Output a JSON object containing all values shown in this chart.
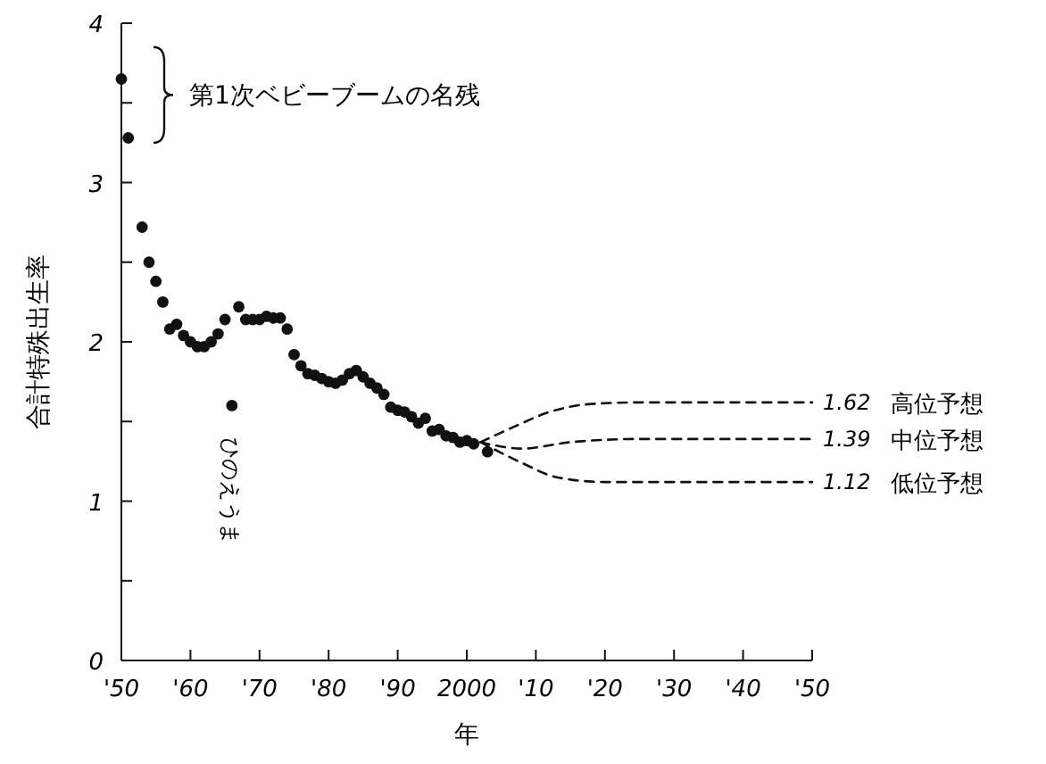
{
  "chart_data": {
    "type": "scatter",
    "xlabel": "年",
    "ylabel": "合計特殊出生率",
    "xlim": [
      1950,
      2050
    ],
    "ylim": [
      0,
      4
    ],
    "xticks": [
      {
        "value": 1950,
        "label": "'50"
      },
      {
        "value": 1960,
        "label": "'60"
      },
      {
        "value": 1970,
        "label": "'70"
      },
      {
        "value": 1980,
        "label": "'80"
      },
      {
        "value": 1990,
        "label": "'90"
      },
      2000,
      {
        "value": 2010,
        "label": "'10"
      },
      {
        "value": 2020,
        "label": "'20"
      },
      {
        "value": 2030,
        "label": "'30"
      },
      {
        "value": 2040,
        "label": "'40"
      },
      {
        "value": 2050,
        "label": "'50"
      }
    ],
    "yticks": [
      0,
      {
        "value": 0.5,
        "label": null
      },
      1,
      {
        "value": 1.5,
        "label": null
      },
      2,
      {
        "value": 2.5,
        "label": null
      },
      3,
      {
        "value": 3.5,
        "label": null
      },
      4
    ],
    "grid": false,
    "series": [
      {
        "color": "#111111",
        "marker": "circle",
        "x": [
          1950,
          1951,
          1953,
          1954,
          1955,
          1956,
          1957,
          1958,
          1959,
          1960,
          1961,
          1962,
          1963,
          1964,
          1965,
          1966,
          1967,
          1968,
          1969,
          1970,
          1971,
          1972,
          1973,
          1974,
          1975,
          1976,
          1977,
          1978,
          1979,
          1980,
          1981,
          1982,
          1983,
          1984,
          1985,
          1986,
          1987,
          1988,
          1989,
          1990,
          1991,
          1992,
          1993,
          1994,
          1995,
          1996,
          1997,
          1998,
          1999,
          2000,
          2001,
          2003
        ],
        "values": [
          3.65,
          3.28,
          2.72,
          2.5,
          2.38,
          2.25,
          2.08,
          2.11,
          2.04,
          2.0,
          1.97,
          1.97,
          2.0,
          2.05,
          2.14,
          1.6,
          2.22,
          2.14,
          2.14,
          2.14,
          2.16,
          2.15,
          2.15,
          2.08,
          1.92,
          1.85,
          1.8,
          1.79,
          1.77,
          1.75,
          1.74,
          1.76,
          1.8,
          1.82,
          1.78,
          1.74,
          1.71,
          1.67,
          1.59,
          1.57,
          1.56,
          1.53,
          1.49,
          1.52,
          1.44,
          1.45,
          1.41,
          1.4,
          1.37,
          1.38,
          1.36,
          1.31
        ]
      },
      {
        "type": "line",
        "name": "高位予想",
        "color": "#111111",
        "marker": "none",
        "line_style": "dashed",
        "x": [
          2002,
          2007,
          2012,
          2018,
          2025,
          2050
        ],
        "values": [
          1.37,
          1.47,
          1.56,
          1.61,
          1.62,
          1.62
        ],
        "value_labels": [
          null,
          null,
          null,
          null,
          null,
          "1.62"
        ]
      },
      {
        "type": "line",
        "name": "中位予想",
        "color": "#111111",
        "marker": "none",
        "line_style": "dashed",
        "x": [
          2002,
          2008,
          2015,
          2025,
          2050
        ],
        "values": [
          1.37,
          1.33,
          1.37,
          1.39,
          1.39
        ],
        "value_labels": [
          null,
          null,
          null,
          null,
          "1.39"
        ]
      },
      {
        "type": "line",
        "name": "低位予想",
        "color": "#111111",
        "marker": "none",
        "line_style": "dashed",
        "x": [
          2002,
          2008,
          2013,
          2020,
          2050
        ],
        "values": [
          1.37,
          1.24,
          1.15,
          1.12,
          1.12
        ],
        "value_labels": [
          null,
          null,
          null,
          null,
          "1.12"
        ]
      }
    ],
    "annotations": [
      "第1次ベビーブームの名残",
      {
        "text": "ひのえうま",
        "x": 1966,
        "y": 1.6
      }
    ]
  }
}
